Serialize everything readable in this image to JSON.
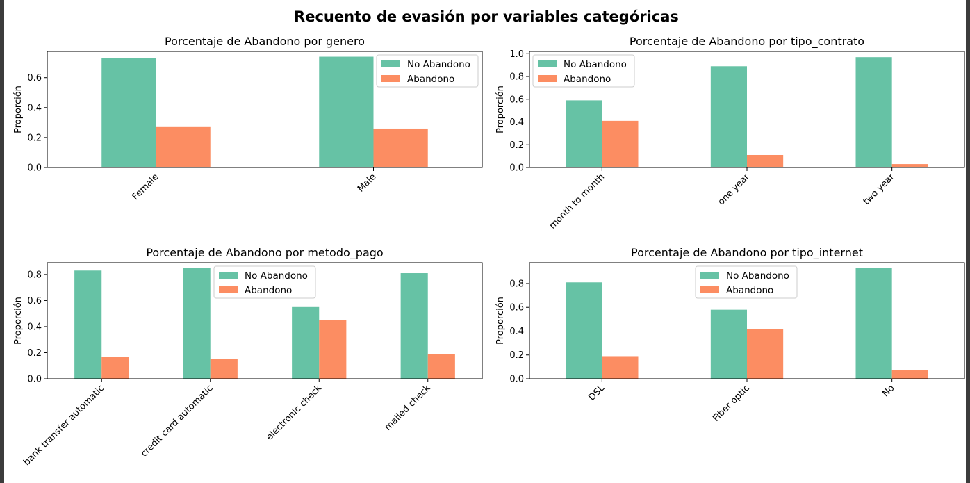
{
  "title": "Recuento de evasión por variables categóricas",
  "colors": {
    "no_abandono": "#66c2a5",
    "abandono": "#fc8d62"
  },
  "chart_data": [
    {
      "type": "bar",
      "title": "Porcentaje de Abandono por genero",
      "ylabel": "Proporción",
      "xlabel": "",
      "categories": [
        "Female",
        "Male"
      ],
      "series": [
        {
          "name": "No Abandono",
          "values": [
            0.73,
            0.74
          ]
        },
        {
          "name": "Abandono",
          "values": [
            0.27,
            0.26
          ]
        }
      ],
      "ylim": [
        0,
        0.775
      ],
      "yticks": [
        "0.0",
        "0.2",
        "0.4",
        "0.6"
      ],
      "legend": "top-right"
    },
    {
      "type": "bar",
      "title": "Porcentaje de Abandono por tipo_contrato",
      "ylabel": "Proporción",
      "xlabel": "",
      "categories": [
        "month to month",
        "one year",
        "two year"
      ],
      "series": [
        {
          "name": "No Abandono",
          "values": [
            0.59,
            0.89,
            0.97
          ]
        },
        {
          "name": "Abandono",
          "values": [
            0.41,
            0.11,
            0.03
          ]
        }
      ],
      "ylim": [
        0,
        1.02
      ],
      "yticks": [
        "0.0",
        "0.2",
        "0.4",
        "0.6",
        "0.8",
        "1.0"
      ],
      "legend": "top-left"
    },
    {
      "type": "bar",
      "title": "Porcentaje de Abandono por metodo_pago",
      "ylabel": "Proporción",
      "xlabel": "",
      "categories": [
        "bank transfer automatic",
        "credit card automatic",
        "electronic check",
        "mailed check"
      ],
      "series": [
        {
          "name": "No Abandono",
          "values": [
            0.83,
            0.85,
            0.55,
            0.81
          ]
        },
        {
          "name": "Abandono",
          "values": [
            0.17,
            0.15,
            0.45,
            0.19
          ]
        }
      ],
      "ylim": [
        0,
        0.89
      ],
      "yticks": [
        "0.0",
        "0.2",
        "0.4",
        "0.6",
        "0.8"
      ],
      "legend": "upper-center"
    },
    {
      "type": "bar",
      "title": "Porcentaje de Abandono por tipo_internet",
      "ylabel": "Proporción",
      "xlabel": "",
      "categories": [
        "DSL",
        "Fiber optic",
        "No"
      ],
      "series": [
        {
          "name": "No Abandono",
          "values": [
            0.81,
            0.58,
            0.93
          ]
        },
        {
          "name": "Abandono",
          "values": [
            0.19,
            0.42,
            0.07
          ]
        }
      ],
      "ylim": [
        0,
        0.975
      ],
      "yticks": [
        "0.0",
        "0.2",
        "0.4",
        "0.6",
        "0.8"
      ],
      "legend": "upper-center"
    }
  ]
}
